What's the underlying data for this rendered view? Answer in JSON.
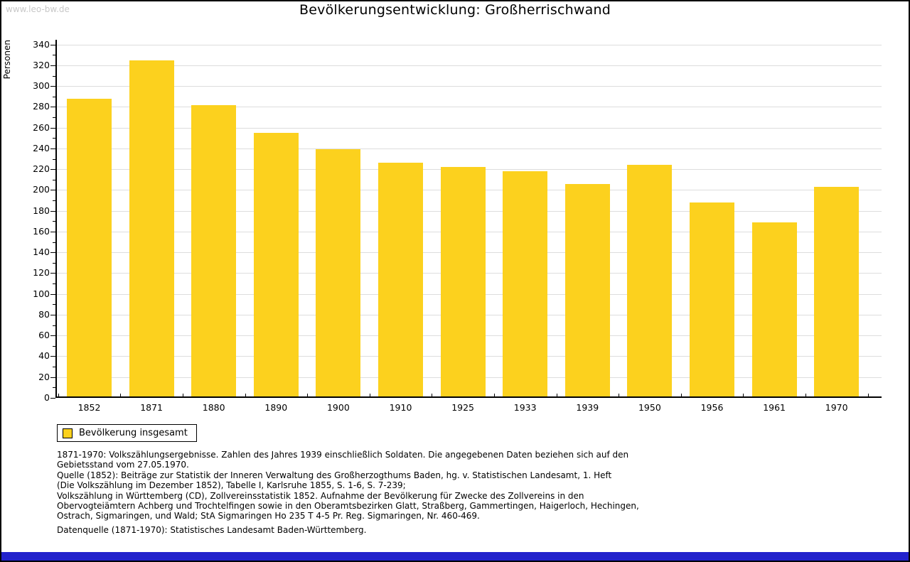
{
  "watermark": "www.leo-bw.de",
  "colors": {
    "bar": "#FCD11E",
    "grid": "#DDDDDD",
    "axis": "#000000",
    "watermark_text": "#C8C8C8",
    "bottom_bar": "#2222CC"
  },
  "legend": {
    "label": "Bevölkerung insgesamt"
  },
  "chart_data": {
    "type": "bar",
    "title": "Bevölkerungsentwicklung: Großherrischwand",
    "xlabel": "",
    "ylabel": "Personen",
    "categories": [
      "1852",
      "1871",
      "1880",
      "1890",
      "1900",
      "1910",
      "1925",
      "1933",
      "1939",
      "1950",
      "1956",
      "1961",
      "1970"
    ],
    "values": [
      288,
      325,
      282,
      255,
      239,
      226,
      222,
      218,
      206,
      224,
      188,
      169,
      203
    ],
    "series_name": "Bevölkerung insgesamt",
    "ylim": [
      0,
      340
    ],
    "ytick_major": 20,
    "ytick_minor": 10,
    "grid": true,
    "legend": [
      "Bevölkerung insgesamt"
    ],
    "legend_position": "bottom-left",
    "bar_color": "#FCD11E"
  },
  "footer": {
    "lines": [
      "1871-1970: Volkszählungsergebnisse. Zahlen des Jahres 1939 einschließlich Soldaten. Die angegebenen Daten beziehen sich auf den",
      "Gebietsstand vom 27.05.1970.",
      "Quelle (1852): Beiträge zur Statistik der Inneren Verwaltung des Großherzogthums Baden, hg. v. Statistischen Landesamt, 1. Heft",
      "(Die Volkszählung im Dezember 1852), Tabelle I, Karlsruhe 1855, S. 1-6, S. 7-239;",
      "Volkszählung in Württemberg (CD), Zollvereinsstatistik 1852. Aufnahme der Bevölkerung für Zwecke des Zollvereins in den",
      "Obervogteiämtern Achberg und Trochtelfingen sowie in den Oberamtsbezirken Glatt, Straßberg, Gammertingen, Haigerloch, Hechingen,",
      "Ostrach, Sigmaringen, und Wald; StA Sigmaringen Ho 235 T 4-5 Pr. Reg. Sigmaringen, Nr. 460-469."
    ],
    "datasource": "Datenquelle (1871-1970): Statistisches Landesamt Baden-Württemberg."
  }
}
